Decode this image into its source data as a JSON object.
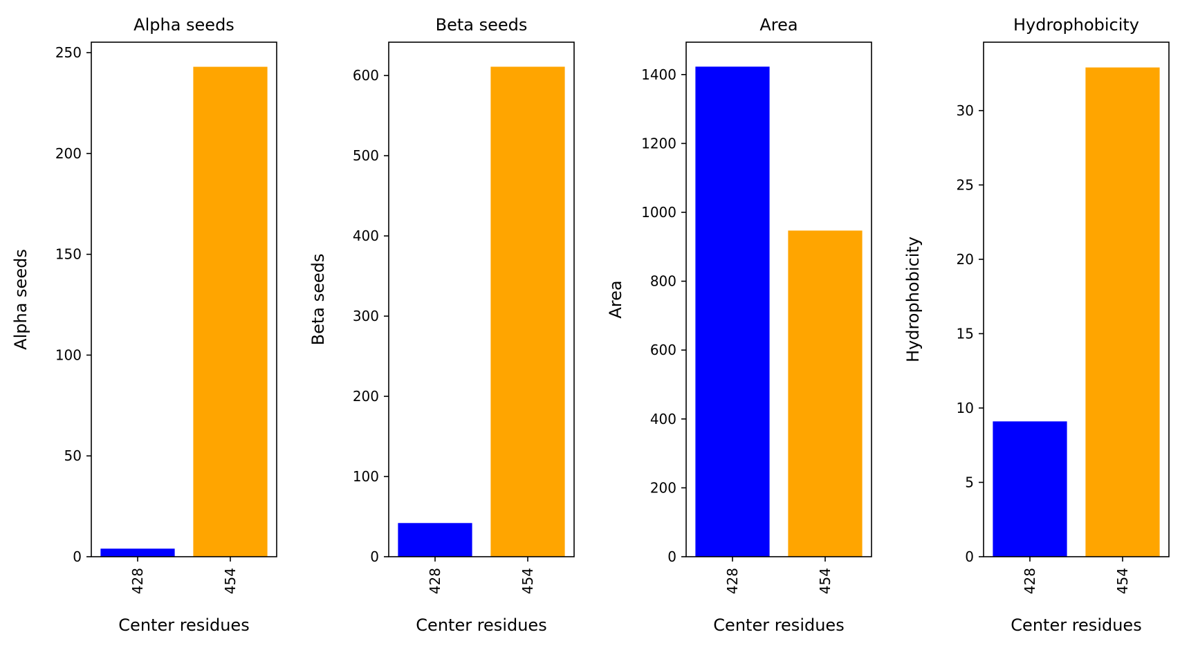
{
  "chart_data": [
    {
      "type": "bar",
      "title": "Alpha seeds",
      "xlabel": "Center residues",
      "ylabel": "Alpha seeds",
      "categories": [
        "428",
        "454"
      ],
      "values": [
        4,
        243
      ],
      "colors": [
        "#0000ff",
        "#ffa500"
      ],
      "ylim": [
        0,
        255.2
      ],
      "yticks": [
        0,
        50,
        100,
        150,
        200,
        250
      ]
    },
    {
      "type": "bar",
      "title": "Beta seeds",
      "xlabel": "Center residues",
      "ylabel": "Beta seeds",
      "categories": [
        "428",
        "454"
      ],
      "values": [
        42,
        611
      ],
      "colors": [
        "#0000ff",
        "#ffa500"
      ],
      "ylim": [
        0,
        641.6
      ],
      "yticks": [
        0,
        100,
        200,
        300,
        400,
        500,
        600
      ]
    },
    {
      "type": "bar",
      "title": "Area",
      "xlabel": "Center residues",
      "ylabel": "Area",
      "categories": [
        "428",
        "454"
      ],
      "values": [
        1423,
        947
      ],
      "colors": [
        "#0000ff",
        "#ffa500"
      ],
      "ylim": [
        0,
        1494
      ],
      "yticks": [
        0,
        200,
        400,
        600,
        800,
        1000,
        1200,
        1400
      ]
    },
    {
      "type": "bar",
      "title": "Hydrophobicity",
      "xlabel": "Center residues",
      "ylabel": "Hydrophobicity",
      "categories": [
        "428",
        "454"
      ],
      "values": [
        9.1,
        32.9
      ],
      "colors": [
        "#0000ff",
        "#ffa500"
      ],
      "ylim": [
        0,
        34.6
      ],
      "yticks": [
        0,
        5,
        10,
        15,
        20,
        25,
        30
      ]
    }
  ]
}
